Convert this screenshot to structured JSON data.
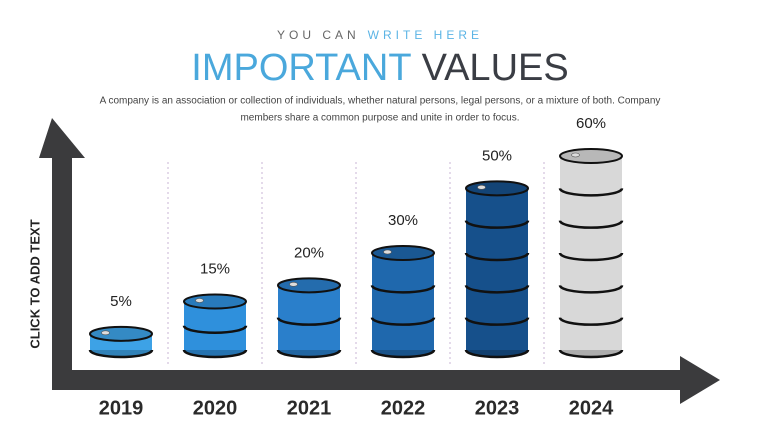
{
  "chart_data": {
    "type": "bar",
    "kicker_parts": [
      "YOU CAN",
      "WRITE HERE"
    ],
    "title_parts": [
      "IMPORTANT",
      "VALUES"
    ],
    "description": [
      "A company is an association or collection of individuals, whether natural persons, legal persons, or a mixture of both. Company",
      "members share a common purpose and unite in order to focus."
    ],
    "y_label": "CLICK TO ADD TEXT",
    "categories": [
      "2019",
      "2020",
      "2021",
      "2022",
      "2023",
      "2024"
    ],
    "values": [
      5,
      15,
      20,
      30,
      50,
      60
    ],
    "value_labels": [
      "5%",
      "15%",
      "20%",
      "30%",
      "50%",
      "60%"
    ],
    "colors": [
      "#3da2e6",
      "#2f90dc",
      "#2a7fcb",
      "#1f68ad",
      "#16508b",
      "#d8d8d8"
    ]
  }
}
